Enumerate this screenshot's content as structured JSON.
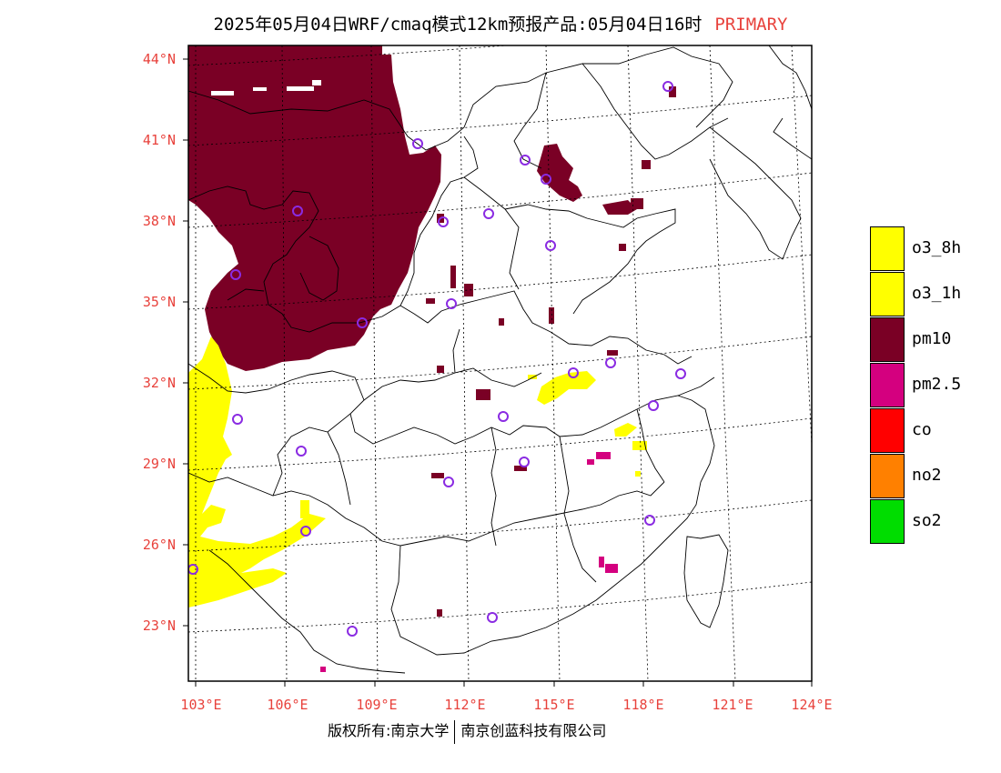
{
  "title": {
    "text": "2025年05月04日WRF/cmaq模式12km预报产品:05月04日16时",
    "tag": "PRIMARY"
  },
  "axes": {
    "lat_labels": [
      "44°N",
      "41°N",
      "38°N",
      "35°N",
      "32°N",
      "29°N",
      "26°N",
      "23°N"
    ],
    "lon_labels": [
      "103°E",
      "106°E",
      "109°E",
      "112°E",
      "115°E",
      "118°E",
      "121°E",
      "124°E"
    ]
  },
  "legend": [
    {
      "label": "o3_8h",
      "color": "#ffff00"
    },
    {
      "label": "o3_1h",
      "color": "#ffff00"
    },
    {
      "label": "pm10",
      "color": "#7a0025"
    },
    {
      "label": "pm2.5",
      "color": "#d4007f"
    },
    {
      "label": "co",
      "color": "#ff0000"
    },
    {
      "label": "no2",
      "color": "#ff8000"
    },
    {
      "label": "so2",
      "color": "#00dd00"
    }
  ],
  "footer": {
    "left": "版权所有:南京大学",
    "right": "南京创蓝科技有限公司"
  },
  "colors": {
    "pm10": "#7a0025",
    "o3": "#ffff00",
    "pm25": "#d4007f",
    "station": "#8a2be2",
    "accent": "#e8423c"
  }
}
